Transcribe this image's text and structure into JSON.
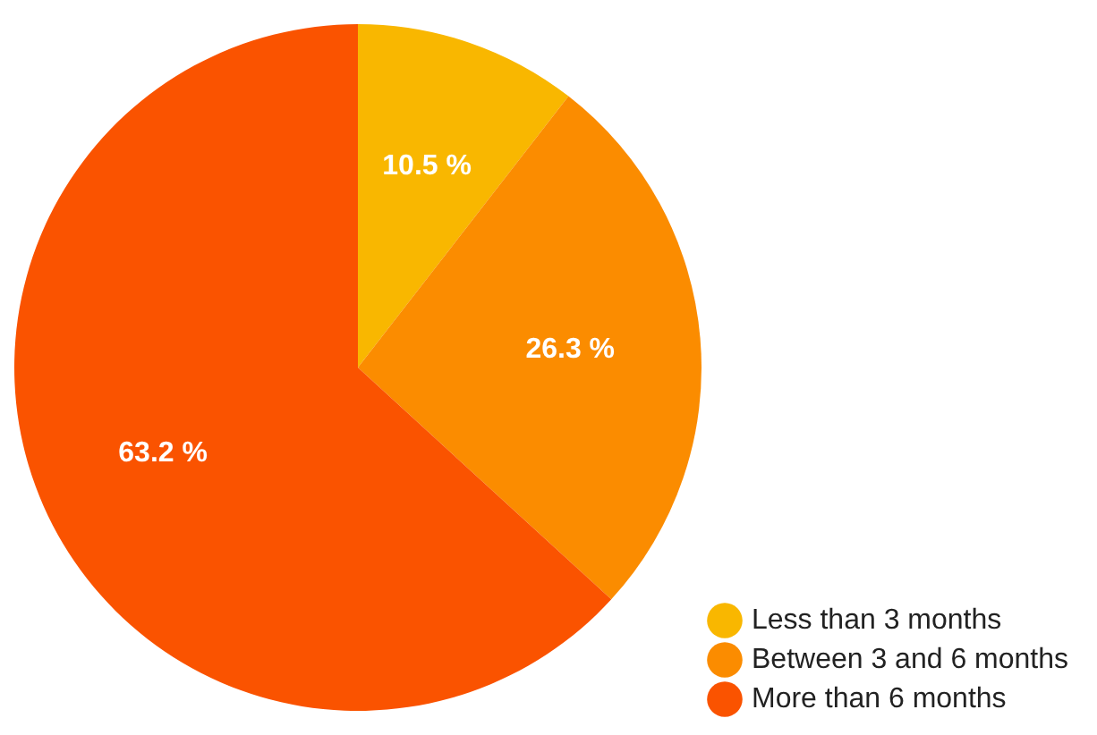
{
  "chart_data": {
    "type": "pie",
    "categories": [
      "Less than 3 months",
      "Between 3 and 6 months",
      "More than 6 months"
    ],
    "values": [
      10.5,
      26.3,
      63.2
    ],
    "colors": [
      "#f9b700",
      "#fb8c00",
      "#fa5300"
    ],
    "value_labels": [
      "10.5 %",
      "26.3 %",
      "63.2 %"
    ],
    "legend": "bottom right"
  }
}
